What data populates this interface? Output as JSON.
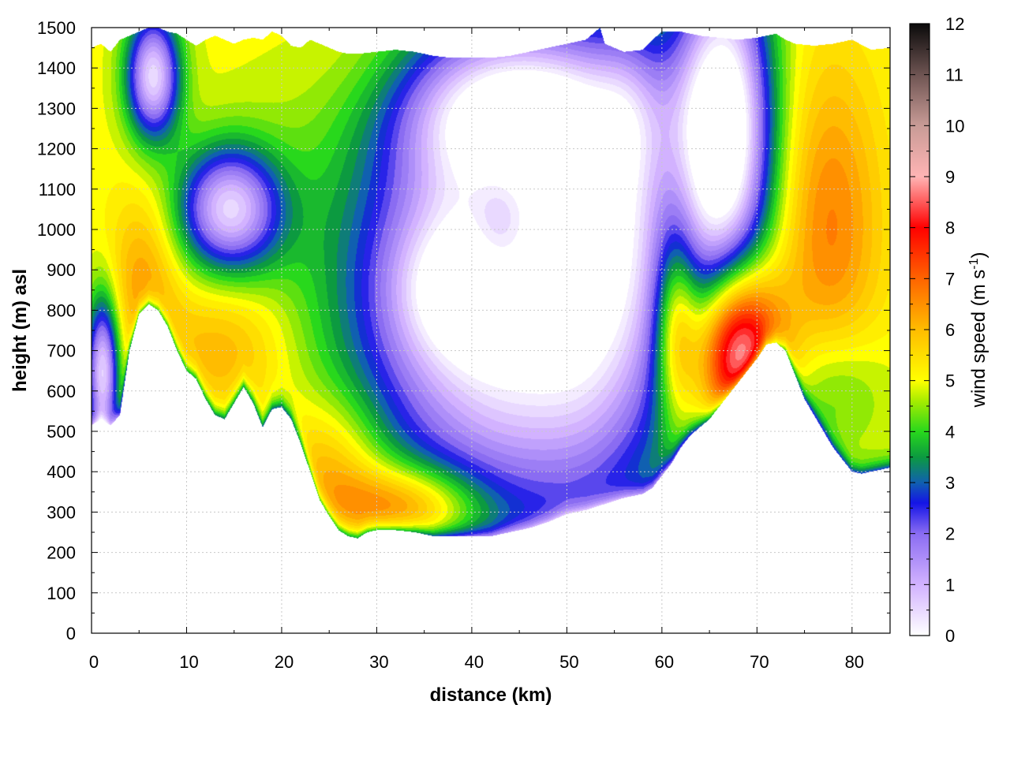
{
  "chart_data": {
    "type": "heatmap",
    "xlabel": "distance (km)",
    "ylabel": "height (m) asl",
    "colorbar_label": "wind speed (m s",
    "colorbar_label_exponent": "-1",
    "colorbar_label_end": ")",
    "xlim": [
      0,
      84
    ],
    "ylim": [
      0,
      1500
    ],
    "zlim": [
      0,
      12
    ],
    "x_ticks": [
      "0",
      "10",
      "20",
      "30",
      "40",
      "50",
      "60",
      "70",
      "80"
    ],
    "y_ticks": [
      "0",
      "100",
      "200",
      "300",
      "400",
      "500",
      "600",
      "700",
      "800",
      "900",
      "1000",
      "1100",
      "1200",
      "1300",
      "1400",
      "1500"
    ],
    "colorbar_ticks": [
      "0",
      "1",
      "2",
      "3",
      "4",
      "5",
      "6",
      "7",
      "8",
      "9",
      "10",
      "11",
      "12"
    ],
    "grid": true,
    "colorbar_position": "right",
    "colormap": [
      {
        "value": 0,
        "color": "#ffffff"
      },
      {
        "value": 1,
        "color": "#d2b2ff"
      },
      {
        "value": 2,
        "color": "#8a6cf2"
      },
      {
        "value": 2.6,
        "color": "#1414e6"
      },
      {
        "value": 3,
        "color": "#1060b0"
      },
      {
        "value": 3.5,
        "color": "#0c9a40"
      },
      {
        "value": 4,
        "color": "#28d81c"
      },
      {
        "value": 4.6,
        "color": "#a6ec00"
      },
      {
        "value": 5,
        "color": "#ffff00"
      },
      {
        "value": 6,
        "color": "#ffbc00"
      },
      {
        "value": 7,
        "color": "#ff6400"
      },
      {
        "value": 8,
        "color": "#ff0000"
      },
      {
        "value": 9,
        "color": "#ffb4b4"
      },
      {
        "value": 10,
        "color": "#c89b96"
      },
      {
        "value": 11,
        "color": "#6e5452"
      },
      {
        "value": 12,
        "color": "#0a0a0a"
      }
    ],
    "terrain_height": [
      [
        0,
        515
      ],
      [
        1,
        530
      ],
      [
        2,
        515
      ],
      [
        3,
        540
      ],
      [
        4,
        700
      ],
      [
        5,
        790
      ],
      [
        6,
        815
      ],
      [
        7,
        800
      ],
      [
        8,
        760
      ],
      [
        9,
        700
      ],
      [
        10,
        650
      ],
      [
        11,
        630
      ],
      [
        12,
        580
      ],
      [
        13,
        540
      ],
      [
        14,
        530
      ],
      [
        15,
        570
      ],
      [
        16,
        610
      ],
      [
        17,
        570
      ],
      [
        18,
        510
      ],
      [
        19,
        555
      ],
      [
        20,
        560
      ],
      [
        21,
        530
      ],
      [
        22,
        470
      ],
      [
        23,
        400
      ],
      [
        24,
        330
      ],
      [
        25,
        290
      ],
      [
        26,
        255
      ],
      [
        27,
        240
      ],
      [
        28,
        235
      ],
      [
        29,
        250
      ],
      [
        30,
        255
      ],
      [
        32,
        255
      ],
      [
        34,
        250
      ],
      [
        36,
        240
      ],
      [
        38,
        240
      ],
      [
        40,
        240
      ],
      [
        42,
        240
      ],
      [
        44,
        250
      ],
      [
        46,
        260
      ],
      [
        48,
        275
      ],
      [
        50,
        295
      ],
      [
        52,
        305
      ],
      [
        54,
        320
      ],
      [
        56,
        335
      ],
      [
        58,
        345
      ],
      [
        59,
        360
      ],
      [
        60,
        390
      ],
      [
        61,
        420
      ],
      [
        62,
        460
      ],
      [
        63,
        490
      ],
      [
        64,
        510
      ],
      [
        65,
        530
      ],
      [
        66,
        560
      ],
      [
        67,
        590
      ],
      [
        68,
        620
      ],
      [
        69,
        650
      ],
      [
        70,
        680
      ],
      [
        71,
        715
      ],
      [
        72,
        720
      ],
      [
        73,
        700
      ],
      [
        74,
        640
      ],
      [
        75,
        580
      ],
      [
        76,
        540
      ],
      [
        77,
        500
      ],
      [
        78,
        460
      ],
      [
        79,
        430
      ],
      [
        80,
        400
      ],
      [
        81,
        395
      ],
      [
        82,
        400
      ],
      [
        83,
        405
      ],
      [
        84,
        410
      ]
    ],
    "top_height": [
      [
        0,
        1450
      ],
      [
        1,
        1460
      ],
      [
        2,
        1440
      ],
      [
        3,
        1470
      ],
      [
        4,
        1480
      ],
      [
        5,
        1490
      ],
      [
        6,
        1500
      ],
      [
        7,
        1500
      ],
      [
        8,
        1490
      ],
      [
        9,
        1485
      ],
      [
        10,
        1470
      ],
      [
        11,
        1455
      ],
      [
        12,
        1470
      ],
      [
        13,
        1480
      ],
      [
        14,
        1470
      ],
      [
        15,
        1460
      ],
      [
        16,
        1470
      ],
      [
        17,
        1475
      ],
      [
        18,
        1470
      ],
      [
        19,
        1490
      ],
      [
        20,
        1480
      ],
      [
        21,
        1455
      ],
      [
        22,
        1450
      ],
      [
        23,
        1470
      ],
      [
        24,
        1460
      ],
      [
        25,
        1450
      ],
      [
        26,
        1440
      ],
      [
        27,
        1435
      ],
      [
        28,
        1435
      ],
      [
        30,
        1440
      ],
      [
        32,
        1445
      ],
      [
        34,
        1440
      ],
      [
        36,
        1430
      ],
      [
        38,
        1425
      ],
      [
        40,
        1425
      ],
      [
        42,
        1425
      ],
      [
        44,
        1430
      ],
      [
        46,
        1440
      ],
      [
        48,
        1450
      ],
      [
        50,
        1460
      ],
      [
        52,
        1470
      ],
      [
        53.5,
        1500
      ],
      [
        54,
        1460
      ],
      [
        56,
        1440
      ],
      [
        58,
        1445
      ],
      [
        59,
        1470
      ],
      [
        60,
        1490
      ],
      [
        62,
        1490
      ],
      [
        64,
        1480
      ],
      [
        66,
        1475
      ],
      [
        68,
        1470
      ],
      [
        70,
        1475
      ],
      [
        71,
        1480
      ],
      [
        72,
        1485
      ],
      [
        73,
        1470
      ],
      [
        74,
        1460
      ],
      [
        76,
        1455
      ],
      [
        78,
        1460
      ],
      [
        80,
        1470
      ],
      [
        82,
        1445
      ],
      [
        84,
        1450
      ]
    ],
    "features": [
      {
        "x": 33,
        "y": 310,
        "sx": 5.5,
        "sy": 75,
        "amp": 2.6
      },
      {
        "x": 25,
        "y": 420,
        "sx": 4,
        "sy": 120,
        "amp": 1.5
      },
      {
        "x": 14,
        "y": 700,
        "sx": 5,
        "sy": 130,
        "amp": 1.2
      },
      {
        "x": 5.5,
        "y": 880,
        "sx": 2.5,
        "sy": 150,
        "amp": 1.3
      },
      {
        "x": 14.5,
        "y": 1050,
        "sx": 3.8,
        "sy": 110,
        "amp": -4.3
      },
      {
        "x": 6.5,
        "y": 1380,
        "sx": 2,
        "sy": 110,
        "amp": -4.5
      },
      {
        "x": 1.2,
        "y": 650,
        "sx": 1.2,
        "sy": 130,
        "amp": -4.5
      },
      {
        "x": 45,
        "y": 850,
        "sx": 12,
        "sy": 400,
        "amp": -5.8
      },
      {
        "x": 38,
        "y": 850,
        "sx": 4.5,
        "sy": 120,
        "amp": -1.5
      },
      {
        "x": 53,
        "y": 800,
        "sx": 4,
        "sy": 300,
        "amp": -0.8
      },
      {
        "x": 56.5,
        "y": 1150,
        "sx": 2.5,
        "sy": 250,
        "amp": -1.3
      },
      {
        "x": 45,
        "y": 1300,
        "sx": 10,
        "sy": 130,
        "amp": -3.4
      },
      {
        "x": 43,
        "y": 1000,
        "sx": 2.5,
        "sy": 120,
        "amp": 1.4
      },
      {
        "x": 66.5,
        "y": 1250,
        "sx": 3.5,
        "sy": 300,
        "amp": -5.5
      },
      {
        "x": 68,
        "y": 700,
        "sx": 3.2,
        "sy": 150,
        "amp": 5.5
      },
      {
        "x": 61.5,
        "y": 760,
        "sx": 1.6,
        "sy": 170,
        "amp": 2.5
      },
      {
        "x": 77.5,
        "y": 1000,
        "sx": 4,
        "sy": 300,
        "amp": 1.8
      },
      {
        "x": 78,
        "y": 600,
        "sx": 4,
        "sy": 120,
        "amp": -1.2
      },
      {
        "x": 30,
        "y": 1350,
        "sx": 6,
        "sy": 150,
        "amp": 0.8
      }
    ]
  }
}
